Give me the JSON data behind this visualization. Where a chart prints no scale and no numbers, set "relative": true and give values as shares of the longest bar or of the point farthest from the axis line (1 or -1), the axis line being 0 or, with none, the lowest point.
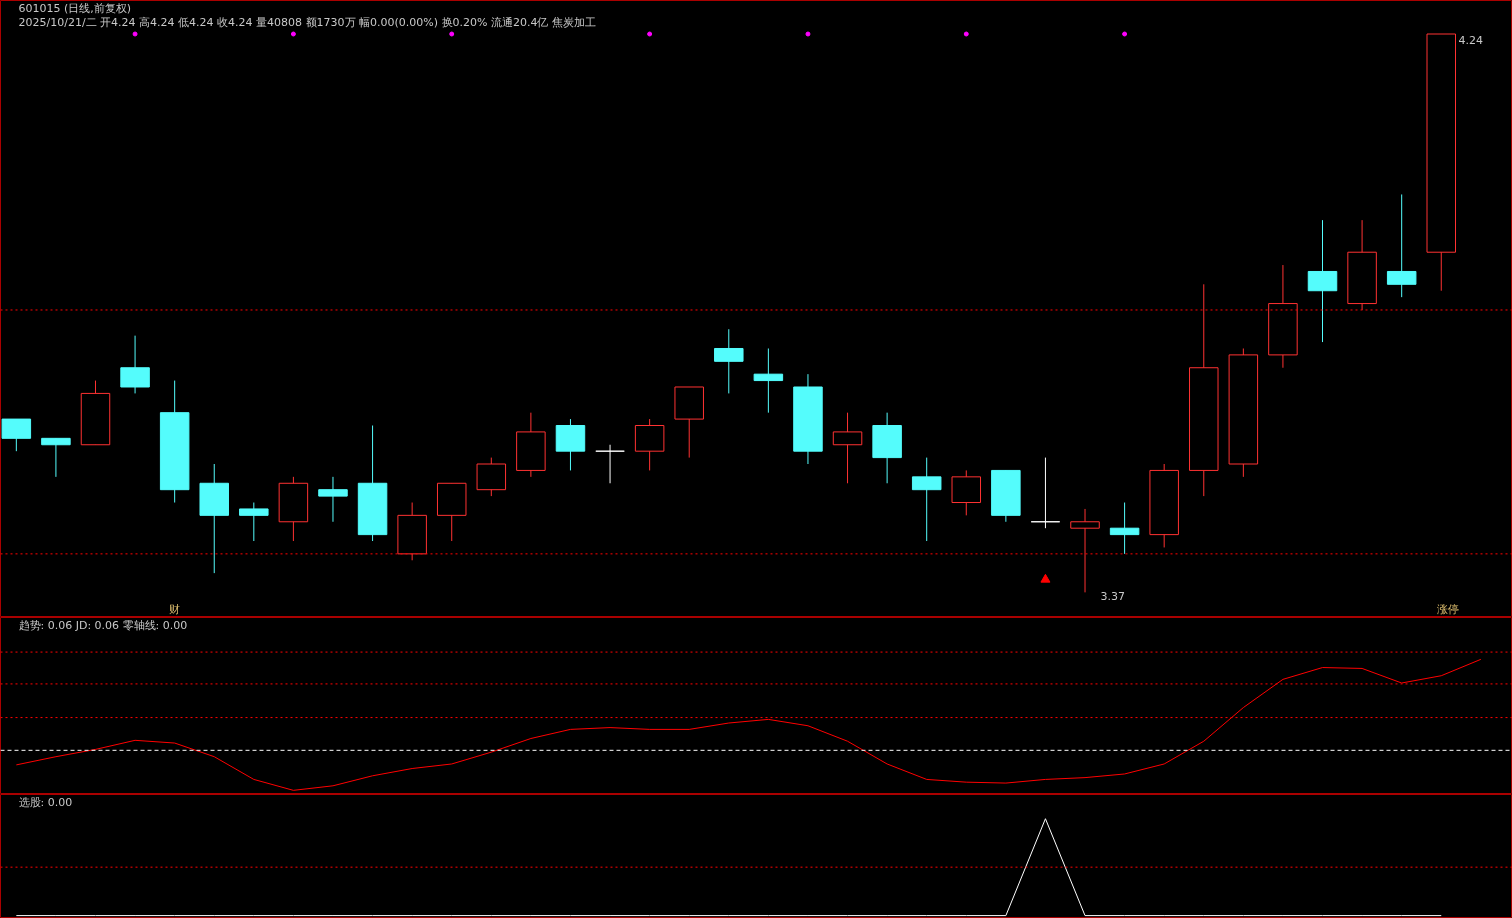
{
  "chart_data": [
    {
      "type": "candlestick",
      "title": "601015 (日线,前复权)",
      "subtitle": "2025/10/21/二 开4.24 高4.24 低4.24 收4.24 量40808 额1730万 幅0.00(0.00%) 换0.20% 流通20.4亿 焦炭加工",
      "categories": [
        null,
        null,
        null,
        null,
        null,
        null,
        null,
        null,
        null,
        null,
        null,
        null,
        null,
        null,
        null,
        null,
        null,
        null,
        null,
        null,
        null,
        null,
        null,
        null,
        null,
        null,
        null,
        null,
        null,
        null,
        null,
        null,
        null,
        null,
        null,
        null,
        null
      ],
      "ohlc": [
        [
          3.64,
          3.64,
          3.59,
          3.61
        ],
        [
          3.61,
          3.61,
          3.55,
          3.6
        ],
        [
          3.6,
          3.7,
          3.6,
          3.68
        ],
        [
          3.72,
          3.77,
          3.68,
          3.69
        ],
        [
          3.65,
          3.7,
          3.51,
          3.53
        ],
        [
          3.54,
          3.57,
          3.4,
          3.49
        ],
        [
          3.5,
          3.51,
          3.45,
          3.49
        ],
        [
          3.48,
          3.55,
          3.45,
          3.54
        ],
        [
          3.53,
          3.55,
          3.48,
          3.52
        ],
        [
          3.54,
          3.63,
          3.45,
          3.46
        ],
        [
          3.43,
          3.51,
          3.42,
          3.49
        ],
        [
          3.49,
          3.54,
          3.45,
          3.54
        ],
        [
          3.53,
          3.58,
          3.52,
          3.57
        ],
        [
          3.56,
          3.65,
          3.55,
          3.62
        ],
        [
          3.63,
          3.64,
          3.56,
          3.59
        ],
        [
          3.59,
          3.6,
          3.54,
          3.59
        ],
        [
          3.59,
          3.64,
          3.56,
          3.63
        ],
        [
          3.64,
          3.69,
          3.58,
          3.69
        ],
        [
          3.75,
          3.78,
          3.68,
          3.73
        ],
        [
          3.71,
          3.75,
          3.65,
          3.7
        ],
        [
          3.69,
          3.71,
          3.57,
          3.59
        ],
        [
          3.6,
          3.65,
          3.54,
          3.62
        ],
        [
          3.63,
          3.65,
          3.54,
          3.58
        ],
        [
          3.55,
          3.58,
          3.45,
          3.53
        ],
        [
          3.51,
          3.56,
          3.49,
          3.55
        ],
        [
          3.56,
          3.56,
          3.48,
          3.49
        ],
        [
          3.48,
          3.58,
          3.47,
          3.48
        ],
        [
          3.47,
          3.5,
          3.37,
          3.48
        ],
        [
          3.47,
          3.51,
          3.43,
          3.46
        ],
        [
          3.46,
          3.57,
          3.44,
          3.56
        ],
        [
          3.56,
          3.85,
          3.52,
          3.72
        ],
        [
          3.57,
          3.75,
          3.55,
          3.74
        ],
        [
          3.74,
          3.88,
          3.72,
          3.82
        ],
        [
          3.87,
          3.95,
          3.76,
          3.84
        ],
        [
          3.82,
          3.95,
          3.81,
          3.9
        ],
        [
          3.87,
          3.99,
          3.83,
          3.85
        ],
        [
          3.9,
          4.24,
          3.84,
          4.24
        ]
      ],
      "series": [
        {
          "type": "scatter",
          "marker": "circle",
          "color": "#ff00ff",
          "values": [
            null,
            null,
            null,
            4.24,
            null,
            null,
            null,
            4.24,
            null,
            null,
            null,
            4.24,
            null,
            null,
            null,
            null,
            4.24,
            null,
            null,
            null,
            4.24,
            null,
            null,
            null,
            4.24,
            null,
            null,
            null,
            4.24,
            null,
            null,
            null,
            null,
            null,
            null,
            null,
            null
          ]
        },
        {
          "type": "scatter",
          "marker": "triangle",
          "color": "#ff0000",
          "values": [
            null,
            null,
            null,
            null,
            null,
            null,
            null,
            null,
            null,
            null,
            null,
            null,
            null,
            null,
            null,
            null,
            null,
            null,
            null,
            null,
            null,
            null,
            null,
            null,
            null,
            null,
            3.39,
            null,
            null,
            null,
            null,
            null,
            null,
            null,
            null,
            null,
            null
          ]
        }
      ],
      "ref_lines": [
        {
          "axis": "y",
          "value": 3.81,
          "color": "#ff0000",
          "line_style": "dotted"
        },
        {
          "axis": "y",
          "value": 3.43,
          "color": "#ff0000",
          "line_style": "dotted"
        }
      ],
      "annotations": [
        "4.24",
        "3.37",
        "财",
        "涨停"
      ],
      "tick_labels": false,
      "grid": false
    },
    {
      "type": "line",
      "relative": true,
      "title": "趋势: 0.06  JD: 0.06  零轴线: 0.00",
      "categories": [
        null,
        null,
        null,
        null,
        null,
        null,
        null,
        null,
        null,
        null,
        null,
        null,
        null,
        null,
        null,
        null,
        null,
        null,
        null,
        null,
        null,
        null,
        null,
        null,
        null,
        null,
        null,
        null,
        null,
        null,
        null,
        null,
        null,
        null,
        null,
        null,
        null,
        null
      ],
      "series": [
        {
          "color": "#ff0000",
          "values": [
            -0.16,
            -0.07,
            0.01,
            0.11,
            0.08,
            -0.07,
            -0.32,
            -0.44,
            -0.39,
            -0.28,
            -0.2,
            -0.15,
            -0.02,
            0.13,
            0.23,
            0.25,
            0.23,
            0.23,
            0.3,
            0.34,
            0.27,
            0.1,
            -0.15,
            -0.32,
            -0.35,
            -0.36,
            -0.32,
            -0.3,
            -0.26,
            -0.15,
            0.1,
            0.47,
            0.78,
            0.91,
            0.9,
            0.74,
            0.82,
            1
          ]
        }
      ],
      "ref_lines": [
        {
          "axis": "y",
          "value": 0,
          "color": "#ffffff",
          "line_style": "dashed"
        },
        {
          "axis": "y",
          "value": 1.08,
          "color": "#ff0000",
          "line_style": "dotted"
        },
        {
          "axis": "y",
          "value": 0.73,
          "color": "#ff0000",
          "line_style": "dotted"
        },
        {
          "axis": "y",
          "value": 0.36,
          "color": "#ff0000",
          "line_style": "dotted"
        }
      ],
      "grid": false
    },
    {
      "type": "line",
      "relative": true,
      "title": "选股: 0.00",
      "categories": [
        null,
        null,
        null,
        null,
        null,
        null,
        null,
        null,
        null,
        null,
        null,
        null,
        null,
        null,
        null,
        null,
        null,
        null,
        null,
        null,
        null,
        null,
        null,
        null,
        null,
        null,
        null,
        null,
        null,
        null,
        null,
        null,
        null,
        null,
        null,
        null,
        null
      ],
      "series": [
        {
          "color": "#ffffff",
          "values": [
            0,
            0,
            0,
            0,
            0,
            0,
            0,
            0,
            0,
            0,
            0,
            0,
            0,
            0,
            0,
            0,
            0,
            0,
            0,
            0,
            0,
            0,
            0,
            0,
            0,
            0,
            1,
            0,
            0,
            0,
            0,
            0,
            0,
            0,
            0,
            0,
            0
          ]
        }
      ],
      "ref_lines": [
        {
          "axis": "y",
          "value": 0.5,
          "color": "#ff0000",
          "line_style": "dotted"
        }
      ],
      "grid": false
    }
  ]
}
